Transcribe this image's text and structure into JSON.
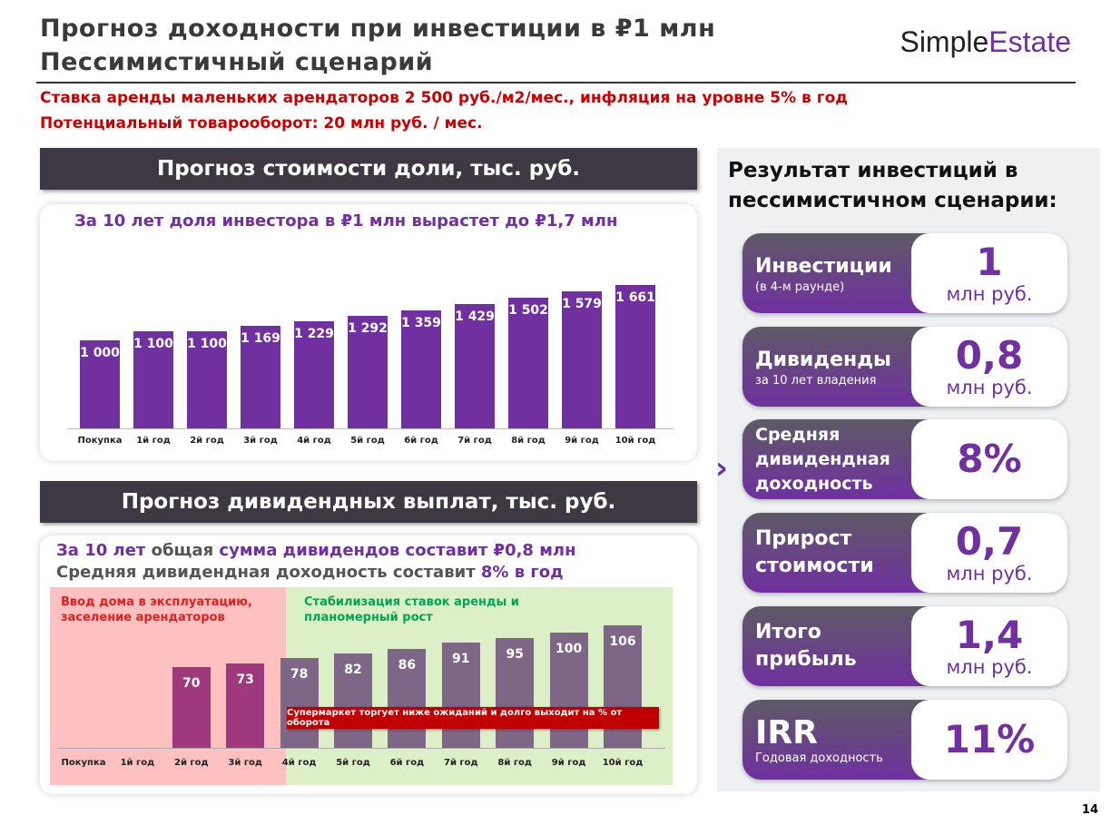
{
  "header": {
    "title1": "Прогноз доходности при инвестиции в ₽1 млн",
    "title2": "Пессимистичный сценарий",
    "logo_a": "Simple",
    "logo_b": "Estate",
    "note1": "Ставка аренды маленьких арендаторов 2 500 руб./м2/мес., инфляция на уровне 5% в год",
    "note2": "Потенциальный товарооборот: 20 млн руб. / мес."
  },
  "colors": {
    "purple": "#7030a0",
    "red": "#cc0000",
    "green": "#00a651",
    "dividend_early": "#a0387e",
    "dividend_late": "#7e6686"
  },
  "chart_data": [
    {
      "type": "bar",
      "title": "Прогноз стоимости доли, тыс. руб.",
      "subtitle": "За 10 лет доля инвестора в ₽1 млн вырастет до ₽1,7 млн",
      "categories": [
        "Покупка",
        "1й год",
        "2й год",
        "3й год",
        "4й год",
        "5й год",
        "6й год",
        "7й год",
        "8й год",
        "9й год",
        "10й год"
      ],
      "values": [
        1000,
        1100,
        1100,
        1169,
        1229,
        1292,
        1359,
        1429,
        1502,
        1579,
        1661
      ],
      "value_labels": [
        "1 000",
        "1 100",
        "1 100",
        "1 169",
        "1 229",
        "1 292",
        "1 359",
        "1 429",
        "1 502",
        "1 579",
        "1 661"
      ]
    },
    {
      "type": "bar",
      "title": "Прогноз дивидендных выплат, тыс. руб.",
      "subtitle_a": "За 10 лет",
      "subtitle_b": " общая ",
      "subtitle_c": "сумма дивидендов составит ₽0,8 млн",
      "subtitle2_a": "Средняя дивидендная доходность составит ",
      "subtitle2_b": "8% в год",
      "categories": [
        "Покупка",
        "1й год",
        "2й год",
        "3й год",
        "4й год",
        "5й год",
        "6й год",
        "7й год",
        "8й год",
        "9й год",
        "10й год"
      ],
      "values": [
        null,
        null,
        70,
        73,
        78,
        82,
        86,
        91,
        95,
        100,
        106
      ],
      "zone1": "Ввод дома в эксплуатацию, заселение арендаторов",
      "zone2": "Стабилизация ставок аренды и планомерный рост",
      "annotation": "Супермаркет торгует ниже ожиданий и долго выходит на % от оборота"
    }
  ],
  "results": {
    "title": "Результат инвестиций в пессимистичном сценарии:",
    "items": [
      {
        "l1": "Инвестиции",
        "l2": "(в 4-м раунде)",
        "big": "1",
        "unit": "млн руб."
      },
      {
        "l1": "Дивиденды",
        "l2": "за 10 лет владения",
        "big": "0,8",
        "unit": "млн руб."
      },
      {
        "l1": "Средняя дивидендная доходность",
        "l2": "",
        "big": "8%",
        "unit": ""
      },
      {
        "l1": "Прирост стоимости",
        "l2": "",
        "big": "0,7",
        "unit": "млн руб."
      },
      {
        "l1": "Итого прибыль",
        "l2": "",
        "big": "1,4",
        "unit": "млн руб."
      },
      {
        "l1": "IRR",
        "l2": "Годовая доходность",
        "big": "11%",
        "unit": ""
      }
    ]
  },
  "page_number": "14"
}
